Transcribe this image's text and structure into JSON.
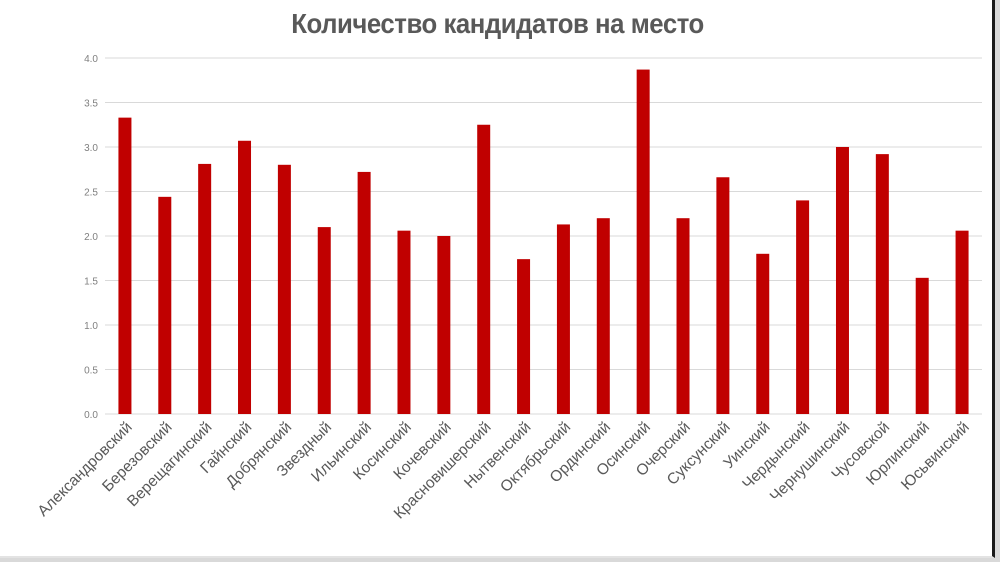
{
  "chart_data": {
    "type": "bar",
    "title": "Количество кандидатов на место",
    "xlabel": "",
    "ylabel": "",
    "ylim": [
      0,
      4
    ],
    "yticks": [
      "0.0",
      "0.5",
      "1.0",
      "1.5",
      "2.0",
      "2.5",
      "3.0",
      "3.5",
      "4.0"
    ],
    "grid": true,
    "legend": null,
    "bar_color": "#c00000",
    "categories": [
      "Александровский",
      "Березовский",
      "Верещагинский",
      "Гайнский",
      "Добрянский",
      "Звездный",
      "Ильинский",
      "Косинский",
      "Кочевский",
      "Красновишерский",
      "Нытвенский",
      "Октябрьский",
      "Ординский",
      "Осинский",
      "Очерский",
      "Суксунский",
      "Уинский",
      "Чердынский",
      "Чернушинский",
      "Чусовской",
      "Юрлинский",
      "Юсьвинский"
    ],
    "values": [
      3.33,
      2.44,
      2.81,
      3.07,
      2.8,
      2.1,
      2.72,
      2.06,
      2.0,
      3.25,
      1.74,
      2.13,
      2.2,
      3.87,
      2.2,
      2.66,
      1.8,
      2.4,
      3.0,
      2.92,
      1.53,
      2.06
    ]
  }
}
